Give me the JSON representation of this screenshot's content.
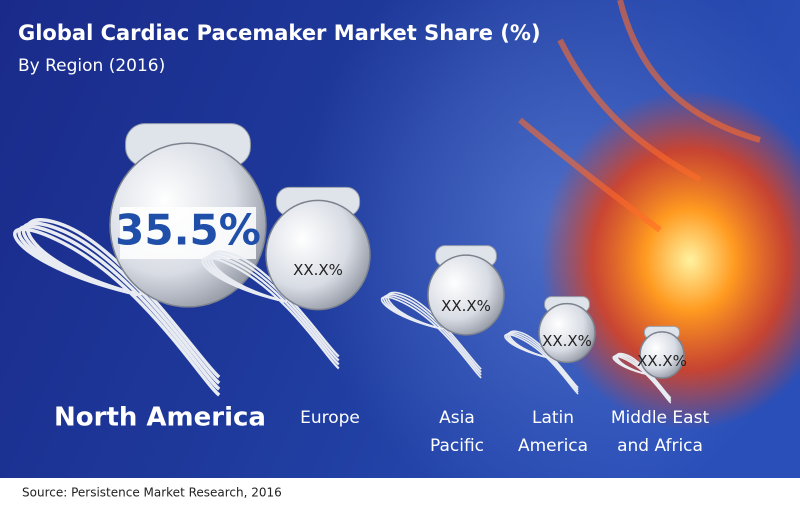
{
  "header": {
    "title": "Global Cardiac Pacemaker Market Share (%)",
    "subtitle": "By Region (2016)"
  },
  "regions": [
    {
      "name": [
        "North America"
      ],
      "share": "35.5%"
    },
    {
      "name": [
        "Europe"
      ],
      "share": "XX.X%"
    },
    {
      "name": [
        "Asia",
        "Pacific"
      ],
      "share": "XX.X%"
    },
    {
      "name": [
        "Latin",
        "America"
      ],
      "share": "XX.X%"
    },
    {
      "name": [
        "Middle East",
        "and Africa"
      ],
      "share": "XX.X%"
    }
  ],
  "source": "Source: Persistence Market Research, 2016"
}
